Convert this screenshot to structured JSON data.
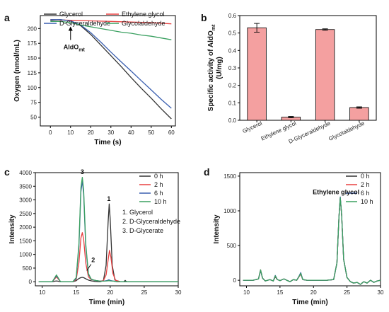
{
  "panels": [
    {
      "id": "a",
      "label": "a"
    },
    {
      "id": "b",
      "label": "b"
    },
    {
      "id": "c",
      "label": "c"
    },
    {
      "id": "d",
      "label": "d"
    }
  ],
  "chart_data": [
    {
      "panel": "a",
      "type": "line",
      "xlabel": "Time (s)",
      "ylabel": "Oxygen (nmol/mL)",
      "xlim": [
        -5,
        62
      ],
      "ylim": [
        35,
        222
      ],
      "xticks": [
        0,
        10,
        20,
        30,
        40,
        50,
        60
      ],
      "yticks": [
        50,
        75,
        100,
        125,
        150,
        175,
        200
      ],
      "legend_position": "top",
      "annotation": {
        "text": "AldO",
        "subscript": "mt",
        "x": 10,
        "y": 207
      },
      "series": [
        {
          "name": "Glycerol",
          "color": "#333333",
          "x": [
            0,
            5,
            10,
            15,
            20,
            25,
            30,
            35,
            40,
            45,
            50,
            55,
            60
          ],
          "y": [
            214,
            215,
            213,
            205,
            190,
            172,
            154,
            136,
            117,
            99,
            82,
            64,
            47
          ]
        },
        {
          "name": "Ethylene glycol",
          "color": "#e84040",
          "x": [
            0,
            10,
            20,
            30,
            40,
            50,
            60
          ],
          "y": [
            215,
            214,
            213,
            212,
            211,
            210,
            208
          ]
        },
        {
          "name": "D-Glyceraldehyde",
          "color": "#3a5fb0",
          "x": [
            0,
            5,
            10,
            15,
            20,
            25,
            30,
            35,
            40,
            45,
            50,
            55,
            60
          ],
          "y": [
            215,
            215,
            213,
            206,
            193,
            177,
            160,
            144,
            128,
            112,
            96,
            80,
            65
          ]
        },
        {
          "name": "Glycolaldehyde",
          "color": "#3aa060",
          "x": [
            0,
            5,
            10,
            15,
            20,
            25,
            30,
            35,
            40,
            45,
            50,
            55,
            60
          ],
          "y": [
            212,
            212,
            210,
            206,
            203,
            200,
            197,
            194,
            192,
            189,
            187,
            184,
            181
          ]
        }
      ]
    },
    {
      "panel": "b",
      "type": "bar",
      "ylabel": "Specific activity of AldO",
      "ylabel_subscript": "mt",
      "ylabel_unit": "(U/mg)",
      "ylim": [
        0,
        0.6
      ],
      "yticks": [
        0.0,
        0.1,
        0.2,
        0.3,
        0.4,
        0.5,
        0.6
      ],
      "categories": [
        "Glycerol",
        "Ethylene glycol",
        "D-Glyceraldehyde",
        "Glycolaldehyde"
      ],
      "values": [
        0.53,
        0.018,
        0.52,
        0.073
      ],
      "errors": [
        0.025,
        0.004,
        0.004,
        0.004
      ],
      "bar_color": "#f4a0a0"
    },
    {
      "panel": "c",
      "type": "line",
      "xlabel": "Time (min)",
      "ylabel": "Intensity",
      "xlim": [
        9,
        30
      ],
      "ylim": [
        -150,
        4000
      ],
      "xticks": [
        10,
        15,
        20,
        25,
        30
      ],
      "yticks": [
        0,
        500,
        1000,
        1500,
        2000,
        2500,
        3000,
        3500,
        4000
      ],
      "legend_position": "top-right",
      "peak_labels": [
        {
          "text": "3",
          "x": 15.9,
          "y": 3950
        },
        {
          "text": "1",
          "x": 19.8,
          "y": 2960
        },
        {
          "text": "2",
          "x": 17.5,
          "y": 720
        }
      ],
      "compound_list": [
        "1. Glycerol",
        "2. D-Glyceraldehyde",
        "3. D-Glycerate"
      ],
      "series": [
        {
          "name": "0 h",
          "color": "#333333",
          "x": [
            9.5,
            11.5,
            11.9,
            12.1,
            12.3,
            12.7,
            14.5,
            15.0,
            15.4,
            15.7,
            15.9,
            16.1,
            16.4,
            16.8,
            17.3,
            17.8,
            18.5,
            19.0,
            19.4,
            19.7,
            19.85,
            20.0,
            20.3,
            20.7,
            21.5,
            22.0,
            22.2,
            22.4,
            23,
            25,
            27,
            29.5,
            30
          ],
          "y": [
            0,
            0,
            20,
            30,
            20,
            0,
            0,
            40,
            120,
            150,
            160,
            150,
            110,
            60,
            30,
            10,
            0,
            40,
            600,
            2200,
            2850,
            2300,
            600,
            60,
            0,
            0,
            50,
            0,
            0,
            0,
            0,
            0,
            0
          ]
        },
        {
          "name": "2 h",
          "color": "#e84040",
          "x": [
            9.5,
            11.5,
            11.9,
            12.1,
            12.3,
            12.7,
            14.5,
            15.0,
            15.4,
            15.7,
            15.9,
            16.1,
            16.4,
            16.8,
            17.2,
            17.6,
            18.0,
            18.5,
            19.0,
            19.4,
            19.7,
            19.9,
            20.1,
            20.4,
            20.8,
            21.5,
            22.2,
            23,
            25,
            27,
            29.5,
            30
          ],
          "y": [
            0,
            0,
            120,
            180,
            120,
            0,
            0,
            80,
            700,
            1600,
            1800,
            1550,
            700,
            180,
            80,
            60,
            40,
            20,
            40,
            250,
            800,
            1150,
            900,
            300,
            50,
            0,
            0,
            0,
            0,
            0,
            0,
            0
          ]
        },
        {
          "name": "6 h",
          "color": "#3a5fb0",
          "x": [
            9.5,
            11.5,
            11.9,
            12.1,
            12.3,
            12.7,
            14.5,
            15.0,
            15.4,
            15.7,
            15.9,
            16.1,
            16.4,
            16.8,
            17.2,
            17.6,
            18.0,
            18.5,
            19.0,
            19.5,
            19.8,
            20.1,
            20.5,
            21.0,
            22,
            23,
            25,
            27,
            29.5,
            30
          ],
          "y": [
            0,
            0,
            150,
            220,
            150,
            0,
            0,
            120,
            1300,
            3300,
            3700,
            3200,
            1300,
            280,
            90,
            60,
            40,
            20,
            20,
            40,
            70,
            40,
            20,
            0,
            0,
            0,
            0,
            0,
            0,
            0
          ]
        },
        {
          "name": "10 h",
          "color": "#3aa060",
          "x": [
            9.5,
            11.5,
            11.9,
            12.1,
            12.3,
            12.7,
            14.5,
            15.0,
            15.4,
            15.7,
            15.9,
            16.1,
            16.4,
            16.8,
            17.2,
            17.6,
            18.0,
            18.5,
            19.0,
            19.5,
            19.8,
            20.1,
            20.5,
            21.0,
            22,
            23,
            25,
            27,
            29.5,
            30
          ],
          "y": [
            0,
            0,
            170,
            250,
            170,
            0,
            0,
            150,
            1400,
            3450,
            3830,
            3350,
            1400,
            300,
            100,
            60,
            40,
            20,
            20,
            30,
            40,
            30,
            20,
            0,
            0,
            0,
            0,
            0,
            0,
            0
          ]
        }
      ]
    },
    {
      "panel": "d",
      "type": "line",
      "xlabel": "Time (min)",
      "ylabel": "Intensity",
      "xlim": [
        9,
        30
      ],
      "ylim": [
        -80,
        1550
      ],
      "xticks": [
        10,
        15,
        20,
        25,
        30
      ],
      "yticks": [
        0,
        500,
        1000,
        1500
      ],
      "legend_position": "top-right",
      "peak_labels": [
        {
          "text": "Ethylene glycol",
          "x": 24,
          "y": 1280
        }
      ],
      "series": [
        {
          "name": "0 h",
          "color": "#333333",
          "x": [
            9.5,
            11,
            11.8,
            12.1,
            12.4,
            12.8,
            13.5,
            14.0,
            14.3,
            14.6,
            15.0,
            15.6,
            16,
            16.5,
            17,
            17.5,
            17.9,
            18.1,
            18.4,
            19,
            20,
            22,
            23,
            23.5,
            23.8,
            24.0,
            24.2,
            24.5,
            25,
            25.5,
            26,
            26.5,
            27,
            27.5,
            28,
            28.5,
            29,
            29.5,
            30
          ],
          "y": [
            0,
            0,
            20,
            140,
            30,
            -10,
            10,
            -10,
            50,
            10,
            -5,
            20,
            0,
            -20,
            10,
            0,
            60,
            90,
            10,
            0,
            0,
            0,
            10,
            250,
            900,
            1180,
            950,
            300,
            40,
            -20,
            -40,
            -30,
            -60,
            -20,
            -40,
            0,
            -30,
            -10,
            0
          ]
        },
        {
          "name": "2 h",
          "color": "#e84040",
          "x": [
            9.5,
            11,
            11.8,
            12.1,
            12.4,
            12.8,
            13.5,
            14.0,
            14.3,
            14.6,
            15.0,
            15.6,
            16,
            16.5,
            17,
            17.5,
            17.9,
            18.1,
            18.4,
            19,
            20,
            22,
            23,
            23.5,
            23.8,
            24.0,
            24.2,
            24.5,
            25,
            25.5,
            26,
            26.5,
            27,
            27.5,
            28,
            28.5,
            29,
            29.5,
            30
          ],
          "y": [
            0,
            0,
            20,
            150,
            30,
            -10,
            10,
            -10,
            60,
            10,
            -5,
            20,
            0,
            -20,
            10,
            0,
            60,
            95,
            10,
            0,
            0,
            0,
            10,
            250,
            900,
            1190,
            950,
            300,
            40,
            -20,
            -40,
            -30,
            -60,
            -20,
            -40,
            0,
            -30,
            -10,
            0
          ]
        },
        {
          "name": "6 h",
          "color": "#3a5fb0",
          "x": [
            9.5,
            11,
            11.8,
            12.1,
            12.4,
            12.8,
            13.5,
            14.0,
            14.3,
            14.6,
            15.0,
            15.6,
            16,
            16.5,
            17,
            17.5,
            17.9,
            18.1,
            18.4,
            19,
            20,
            22,
            23,
            23.5,
            23.8,
            24.0,
            24.2,
            24.5,
            25,
            25.5,
            26,
            26.5,
            27,
            27.5,
            28,
            28.5,
            29,
            29.5,
            30
          ],
          "y": [
            0,
            0,
            20,
            145,
            30,
            -10,
            10,
            -10,
            70,
            10,
            -5,
            20,
            0,
            -20,
            10,
            0,
            70,
            110,
            10,
            0,
            0,
            0,
            10,
            250,
            900,
            1200,
            950,
            300,
            40,
            -20,
            -40,
            -30,
            -60,
            -20,
            -40,
            0,
            -30,
            -10,
            0
          ]
        },
        {
          "name": "10 h",
          "color": "#3aa060",
          "x": [
            9.5,
            11,
            11.8,
            12.1,
            12.4,
            12.8,
            13.5,
            14.0,
            14.3,
            14.6,
            15.0,
            15.6,
            16,
            16.5,
            17,
            17.5,
            17.9,
            18.1,
            18.4,
            19,
            20,
            22,
            23,
            23.5,
            23.8,
            24.0,
            24.2,
            24.5,
            25,
            25.5,
            26,
            26.5,
            27,
            27.5,
            28,
            28.5,
            29,
            29.5,
            30
          ],
          "y": [
            0,
            0,
            20,
            150,
            30,
            -10,
            10,
            -10,
            65,
            10,
            -5,
            20,
            0,
            -20,
            10,
            0,
            65,
            100,
            10,
            0,
            0,
            0,
            10,
            250,
            900,
            1190,
            950,
            300,
            40,
            -20,
            -40,
            -30,
            -60,
            -20,
            -40,
            0,
            -30,
            -10,
            0
          ]
        }
      ]
    }
  ]
}
